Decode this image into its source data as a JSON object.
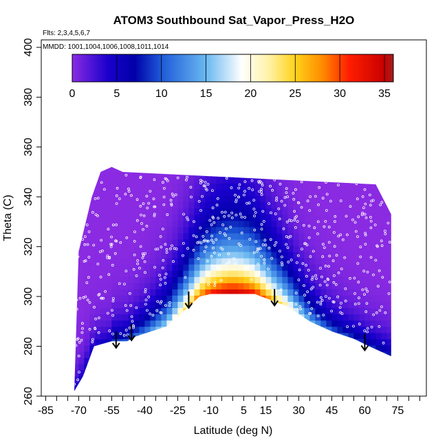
{
  "chart_data": {
    "type": "heatmap",
    "title": "ATOM3 Southbound Sat_Vapor_Press_H2O",
    "notes": [
      "Flts: 2,3,4,5,6,7",
      "MMDD: 1001,1004,1006,1008,1011,1014"
    ],
    "xlabel": "Latitude (deg N)",
    "ylabel": "Theta (C)",
    "xlim": [
      -87,
      88
    ],
    "ylim": [
      260,
      403
    ],
    "x_ticks": [
      -85,
      -70,
      -55,
      -40,
      -25,
      -10,
      5,
      15,
      30,
      45,
      60,
      75
    ],
    "y_ticks": [
      260,
      280,
      300,
      320,
      340,
      360,
      380,
      400
    ],
    "colorbar": {
      "range": [
        0,
        36
      ],
      "ticks": [
        0,
        5,
        10,
        15,
        20,
        25,
        30,
        35
      ],
      "color_stops": [
        {
          "value": 0,
          "color": "#8a2be2"
        },
        {
          "value": 4,
          "color": "#1a00cc"
        },
        {
          "value": 7,
          "color": "#0000a8"
        },
        {
          "value": 10,
          "color": "#1e5ad8"
        },
        {
          "value": 15,
          "color": "#69b8f0"
        },
        {
          "value": 19,
          "color": "#ffffff"
        },
        {
          "value": 22,
          "color": "#fff2a8"
        },
        {
          "value": 25,
          "color": "#ffd21a"
        },
        {
          "value": 28,
          "color": "#ff8c00"
        },
        {
          "value": 31,
          "color": "#ff1e00"
        },
        {
          "value": 35,
          "color": "#c80000"
        },
        {
          "value": 36,
          "color": "#a31f1f"
        }
      ]
    },
    "domain_boundary": {
      "top": [
        [
          -70,
          318
        ],
        [
          -64,
          340
        ],
        [
          -60,
          350
        ],
        [
          -55,
          352
        ],
        [
          -50,
          350
        ],
        [
          65,
          345
        ],
        [
          72,
          333
        ]
      ],
      "bottom": [
        [
          -72,
          262
        ],
        [
          -68,
          268
        ],
        [
          -63,
          280
        ],
        [
          -55,
          282
        ],
        [
          -48,
          282
        ],
        [
          -44,
          284
        ],
        [
          -30,
          288
        ],
        [
          -15,
          300
        ],
        [
          -10,
          301
        ],
        [
          10,
          301
        ],
        [
          25,
          296
        ],
        [
          35,
          290
        ],
        [
          45,
          286
        ],
        [
          55,
          283
        ],
        [
          62,
          280
        ],
        [
          72,
          276
        ]
      ]
    },
    "value_field_description": "Saturation vapor pressure of H2O increases toward lower theta; maximum (~33-36) along the tropical lower boundary near theta 300, decreasing to ~0 at high theta and high southern latitudes.",
    "arrows": [
      {
        "lat": -53,
        "theta": 286
      },
      {
        "lat": -46,
        "theta": 289
      },
      {
        "lat": -20,
        "theta": 302
      },
      {
        "lat": 19,
        "theta": 303
      },
      {
        "lat": 60,
        "theta": 285
      }
    ],
    "point_markers": "white open circles = flight sample locations"
  }
}
